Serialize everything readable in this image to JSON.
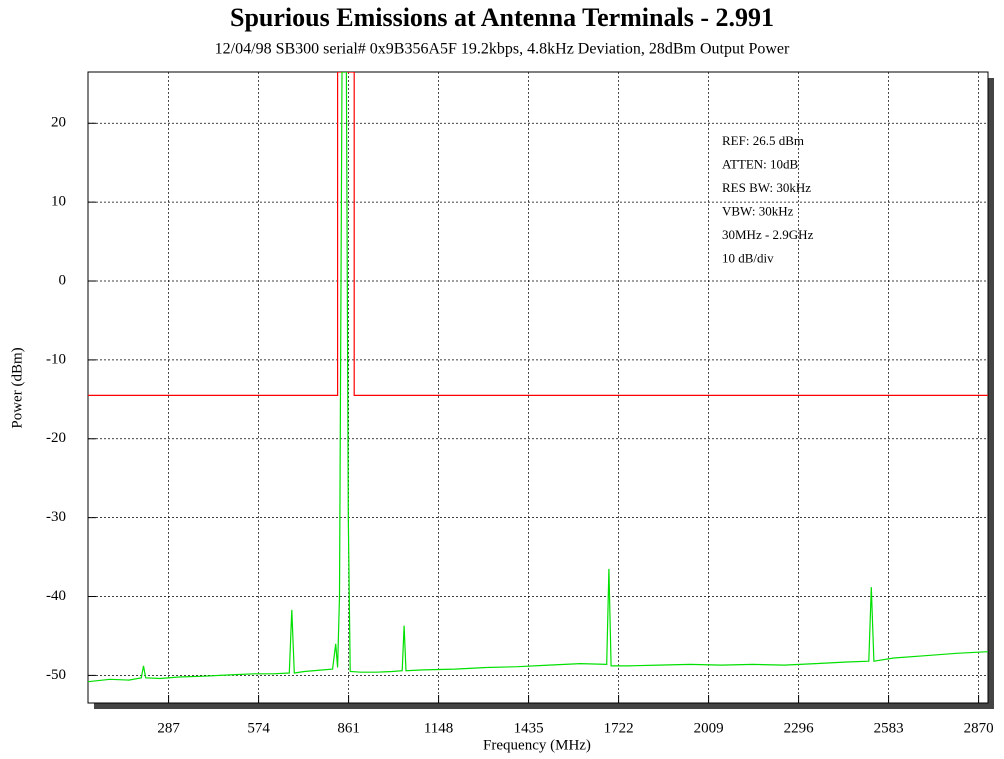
{
  "chart_data": {
    "type": "line",
    "title": "Spurious Emissions at Antenna Terminals - 2.991",
    "subtitle": "12/04/98  SB300 serial#  0x9B356A5F  19.2kbps, 4.8kHz Deviation, 28dBm Output Power",
    "x_label": "Frequency (MHz)",
    "y_label": "Power (dBm)",
    "annotations": [
      "REF: 26.5 dBm",
      "ATTEN: 10dB",
      "RES BW: 30kHz",
      "VBW: 30kHz",
      "30MHz - 2.9GHz",
      "10 dB/div"
    ],
    "xlim": [
      30,
      2900
    ],
    "ylim": [
      -53.5,
      26.5
    ],
    "xticks": [
      287,
      574,
      861,
      1148,
      1435,
      1722,
      2009,
      2296,
      2583,
      2870
    ],
    "yticks": [
      -50,
      -40,
      -30,
      -20,
      -10,
      0,
      10,
      20
    ],
    "grid": true,
    "series": [
      {
        "color": "#ff0000",
        "x": [
          30,
          826,
          826,
          879,
          879,
          2900
        ],
        "values": [
          -14.5,
          -14.5,
          26.5,
          26.5,
          -14.5,
          -14.5
        ]
      },
      {
        "color": "#00e000",
        "x": [
          30,
          100,
          160,
          200,
          207,
          214,
          260,
          320,
          400,
          450,
          500,
          560,
          620,
          672,
          680,
          688,
          720,
          780,
          810,
          820,
          826,
          832,
          840,
          846,
          850,
          854,
          860,
          866,
          900,
          950,
          1000,
          1032,
          1038,
          1044,
          1100,
          1200,
          1300,
          1400,
          1500,
          1600,
          1684,
          1691,
          1698,
          1750,
          1850,
          1950,
          2050,
          2150,
          2250,
          2350,
          2450,
          2520,
          2528,
          2536,
          2600,
          2700,
          2800,
          2900
        ],
        "values": [
          -50.8,
          -50.5,
          -50.6,
          -50.3,
          -48.8,
          -50.3,
          -50.4,
          -50.2,
          -50.1,
          -50.0,
          -49.9,
          -49.8,
          -49.8,
          -49.7,
          -41.7,
          -49.7,
          -49.5,
          -49.3,
          -49.2,
          -46,
          -49,
          -40,
          26.5,
          26.5,
          26.5,
          26.5,
          -30,
          -49.5,
          -49.6,
          -49.6,
          -49.5,
          -49.4,
          -43.7,
          -49.4,
          -49.3,
          -49.2,
          -49.0,
          -48.9,
          -48.7,
          -48.5,
          -48.6,
          -36.5,
          -48.8,
          -48.8,
          -48.7,
          -48.6,
          -48.7,
          -48.6,
          -48.7,
          -48.5,
          -48.3,
          -48.2,
          -38.8,
          -48.2,
          -47.8,
          -47.5,
          -47.2,
          -47.0
        ]
      }
    ]
  }
}
